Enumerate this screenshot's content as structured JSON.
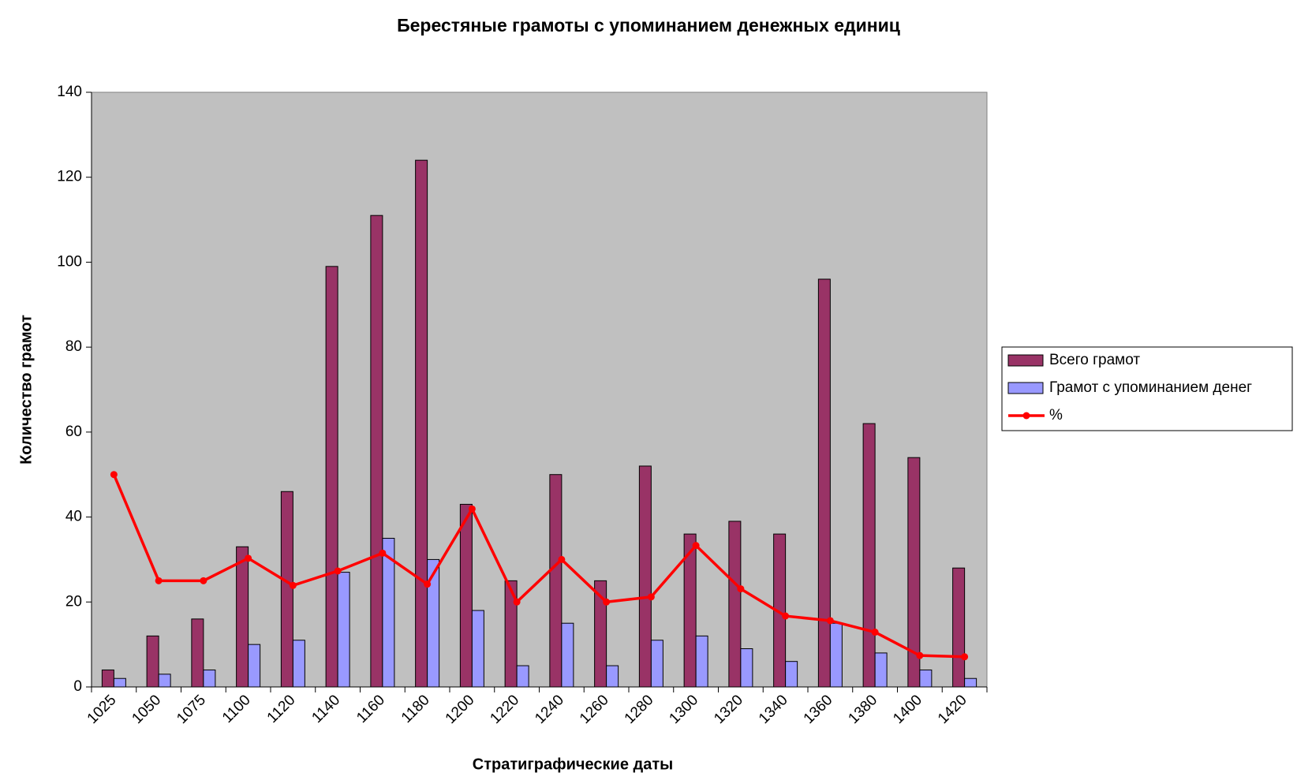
{
  "chart_data": {
    "type": "bar",
    "title": "Берестяные грамоты с упоминанием денежных единиц",
    "x_label": "Стратиграфические даты",
    "y_label": "Количество грамот",
    "categories": [
      "1025",
      "1050",
      "1075",
      "1100",
      "1120",
      "1140",
      "1160",
      "1180",
      "1200",
      "1220",
      "1240",
      "1260",
      "1280",
      "1300",
      "1320",
      "1340",
      "1360",
      "1380",
      "1400",
      "1420"
    ],
    "series": [
      {
        "name": "Всего грамот",
        "color": "#993366",
        "type": "bar",
        "values": [
          4,
          12,
          16,
          33,
          46,
          99,
          111,
          124,
          43,
          25,
          50,
          25,
          52,
          36,
          39,
          36,
          96,
          62,
          54,
          28
        ]
      },
      {
        "name": "Грамот с упоминанием денег",
        "color": "#9999ff",
        "type": "bar",
        "values": [
          2,
          3,
          4,
          10,
          11,
          27,
          35,
          30,
          18,
          5,
          15,
          5,
          11,
          12,
          9,
          6,
          15,
          8,
          4,
          2
        ]
      },
      {
        "name": "%",
        "color": "#ff0000",
        "type": "line",
        "values": [
          50,
          25,
          25,
          30.3,
          23.9,
          27.3,
          31.5,
          24.2,
          41.9,
          20,
          30,
          20,
          21.2,
          33.3,
          23.1,
          16.7,
          15.6,
          12.9,
          7.4,
          7.1
        ]
      }
    ],
    "ylim": [
      0,
      140
    ],
    "yticks": [
      0,
      20,
      40,
      60,
      80,
      100,
      120,
      140
    ],
    "plot_background": "#c0c0c0",
    "legend": "right"
  }
}
